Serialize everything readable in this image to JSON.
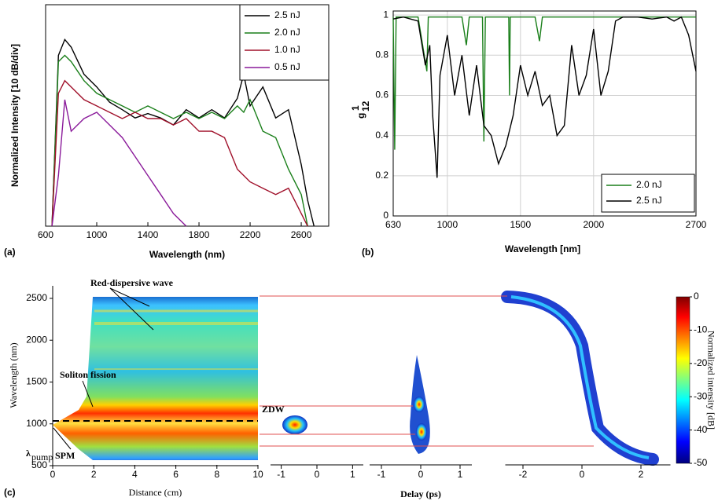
{
  "chart_data": [
    {
      "type": "line",
      "panel_label": "(a)",
      "xlabel": "Wavelength (nm)",
      "ylabel": "Normalized Intensity [10 dB/div]",
      "x": [
        650,
        700,
        750,
        800,
        900,
        1000,
        1100,
        1200,
        1300,
        1400,
        1500,
        1600,
        1700,
        1800,
        1900,
        2000,
        2100,
        2150,
        2200,
        2300,
        2400,
        2500,
        2600,
        2650,
        2700
      ],
      "xlim": [
        600,
        2815
      ],
      "xticks": [
        600,
        1000,
        1400,
        1800,
        2200,
        2600
      ],
      "ylim": [
        -35,
        0
      ],
      "legend": "upper right",
      "series": [
        {
          "name": "2.5 nJ",
          "color": "#000000",
          "values": [
            -35,
            -8,
            -5.5,
            -6.7,
            -11,
            -13,
            -15.4,
            -16.6,
            -17.9,
            -17.2,
            -17.9,
            -19,
            -16.6,
            -17.9,
            -16.6,
            -17.9,
            -14.8,
            -11,
            -16,
            -13,
            -17.9,
            -16.6,
            -25.3,
            -30.9,
            -35
          ]
        },
        {
          "name": "2.0 nJ",
          "color": "#1a7f1a",
          "values": [
            -35,
            -9,
            -8,
            -9,
            -12,
            -14,
            -15,
            -16,
            -17,
            -16,
            -17,
            -18,
            -17,
            -18,
            -17,
            -18,
            -16,
            -17,
            -15,
            -20,
            -21,
            -26,
            -30,
            -35,
            null
          ]
        },
        {
          "name": "1.0 nJ",
          "color": "#a0102a",
          "values": [
            -35,
            -14,
            -12,
            -13,
            -15,
            -16,
            -17,
            -18,
            -17,
            -18,
            -18,
            -19,
            -18,
            -20,
            -20,
            -21,
            -26,
            -27,
            -28,
            -29,
            -30,
            -29,
            -33,
            -35,
            null
          ]
        },
        {
          "name": "0.5 nJ",
          "color": "#8a1a9a",
          "values": [
            -35,
            -27,
            -15,
            -20,
            -18,
            -17,
            -19,
            -21,
            -24,
            -27,
            -30,
            -33,
            -35,
            null,
            null,
            null,
            null,
            null,
            null,
            null,
            null,
            null,
            null,
            null,
            null
          ]
        }
      ]
    },
    {
      "type": "line",
      "panel_label": "(b)",
      "xlabel": "Wavelength [nm]",
      "ylabel": "g",
      "ylabel_sup": "1",
      "ylabel_sub": "12",
      "xlim": [
        630,
        2700
      ],
      "xticks": [
        630,
        1000,
        1500,
        2000,
        2700
      ],
      "ylim": [
        0,
        1.02
      ],
      "yticks": [
        0,
        0.2,
        0.4,
        0.6,
        0.8,
        1
      ],
      "grid": true,
      "legend": "lower right",
      "series": [
        {
          "name": "2.0 nJ",
          "color": "#1a7f1a",
          "x": [
            630,
            640,
            650,
            800,
            860,
            870,
            1100,
            1130,
            1150,
            1240,
            1250,
            1260,
            1420,
            1425,
            1430,
            1600,
            1630,
            1650,
            2000,
            2200,
            2700
          ],
          "values": [
            0.99,
            0.33,
            0.99,
            0.99,
            0.72,
            0.99,
            0.99,
            0.85,
            0.99,
            0.99,
            0.37,
            0.99,
            0.99,
            0.6,
            0.99,
            0.99,
            0.87,
            0.99,
            0.99,
            0.99,
            0.99
          ]
        },
        {
          "name": "2.5 nJ",
          "color": "#000000",
          "x": [
            630,
            700,
            800,
            850,
            880,
            900,
            930,
            950,
            1000,
            1050,
            1100,
            1150,
            1200,
            1250,
            1300,
            1350,
            1400,
            1450,
            1500,
            1550,
            1600,
            1650,
            1700,
            1750,
            1800,
            1850,
            1900,
            1950,
            2000,
            2050,
            2100,
            2150,
            2200,
            2300,
            2400,
            2500,
            2550,
            2600,
            2650,
            2700
          ],
          "values": [
            0.98,
            0.99,
            0.97,
            0.75,
            0.85,
            0.5,
            0.19,
            0.7,
            0.9,
            0.6,
            0.8,
            0.5,
            0.75,
            0.45,
            0.4,
            0.26,
            0.35,
            0.5,
            0.75,
            0.6,
            0.72,
            0.55,
            0.6,
            0.4,
            0.45,
            0.85,
            0.6,
            0.7,
            0.93,
            0.6,
            0.72,
            0.97,
            0.99,
            0.99,
            0.98,
            0.99,
            0.97,
            0.99,
            0.9,
            0.72
          ]
        }
      ]
    },
    {
      "type": "heatmap",
      "panel_label": "(c)",
      "ylabel": "Wavelength (nm)",
      "xlabel": "Delay (ps)",
      "ylim": [
        500,
        2650
      ],
      "yticks": [
        500,
        1000,
        1500,
        2000,
        2500
      ],
      "panels": [
        {
          "xlabel": "Distance (cm)",
          "xlim": [
            0,
            10
          ],
          "xticks": [
            0,
            2,
            4,
            6,
            8,
            10
          ]
        },
        {
          "xlim": [
            -1.3,
            1.3
          ],
          "xticks": [
            -1,
            0,
            1
          ]
        },
        {
          "xlim": [
            -1.3,
            1.3
          ],
          "xticks": [
            -1,
            0,
            1
          ]
        },
        {
          "xlim": [
            -2.6,
            3
          ],
          "xticks": [
            -2,
            0,
            2
          ]
        }
      ],
      "colorbar": {
        "label": "Normalized intensity [dB]",
        "lim": [
          -50,
          0
        ],
        "ticks": [
          0,
          -10,
          -20,
          -30,
          -40,
          -50
        ]
      },
      "annotations": [
        {
          "text": "Red-dispersive wave"
        },
        {
          "text": "Soliton fission"
        },
        {
          "text": "ZDW"
        },
        {
          "text": "λ",
          "sub": "pump"
        },
        {
          "text": "SPM"
        }
      ]
    }
  ]
}
